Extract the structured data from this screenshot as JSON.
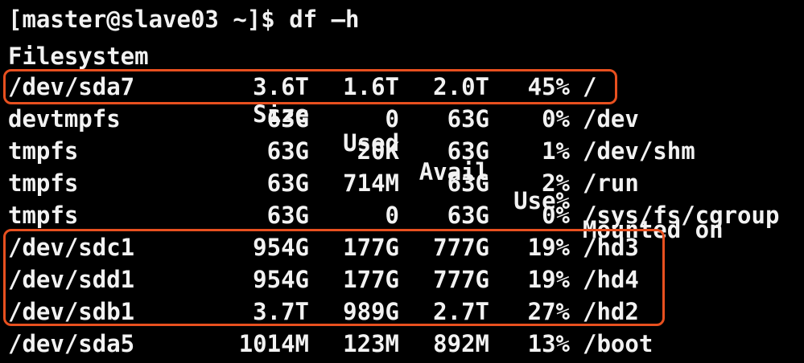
{
  "terminal": {
    "prompt": "[master@slave03 ~]$ df –h",
    "header": {
      "filesystem": "Filesystem",
      "size": "Size",
      "used": "Used",
      "avail": "Avail",
      "use": "Use%",
      "mounted": "Mounted on"
    },
    "rows": [
      {
        "filesystem": "/dev/sda7",
        "size": "3.6T",
        "used": "1.6T",
        "avail": "2.0T",
        "use": "45%",
        "mounted": "/"
      },
      {
        "filesystem": "devtmpfs",
        "size": "63G",
        "used": "0",
        "avail": "63G",
        "use": "0%",
        "mounted": "/dev"
      },
      {
        "filesystem": "tmpfs",
        "size": "63G",
        "used": "20K",
        "avail": "63G",
        "use": "1%",
        "mounted": "/dev/shm"
      },
      {
        "filesystem": "tmpfs",
        "size": "63G",
        "used": "714M",
        "avail": "63G",
        "use": "2%",
        "mounted": "/run"
      },
      {
        "filesystem": "tmpfs",
        "size": "63G",
        "used": "0",
        "avail": "63G",
        "use": "0%",
        "mounted": "/sys/fs/cgroup"
      },
      {
        "filesystem": "/dev/sdc1",
        "size": "954G",
        "used": "177G",
        "avail": "777G",
        "use": "19%",
        "mounted": "/hd3"
      },
      {
        "filesystem": "/dev/sdd1",
        "size": "954G",
        "used": "177G",
        "avail": "777G",
        "use": "19%",
        "mounted": "/hd4"
      },
      {
        "filesystem": "/dev/sdb1",
        "size": "3.7T",
        "used": "989G",
        "avail": "2.7T",
        "use": "27%",
        "mounted": "/hd2"
      },
      {
        "filesystem": "/dev/sda5",
        "size": "1014M",
        "used": "123M",
        "avail": "892M",
        "use": "13%",
        "mounted": "/boot"
      }
    ]
  },
  "colors": {
    "background": "#000000",
    "text": "#f2f2f2",
    "highlight": "#e8501f"
  }
}
